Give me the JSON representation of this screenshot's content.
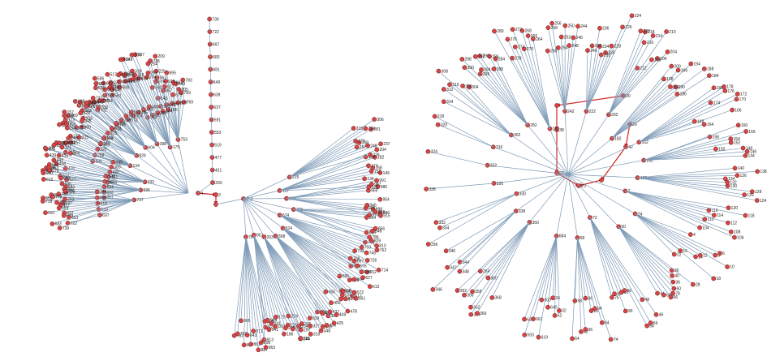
{
  "colors": {
    "edge": "#7f9bb7",
    "highlight_edge": "#cc2a2a",
    "node_fill": "#d94545",
    "node_stroke": "#5a1a1a",
    "label": "#222222"
  },
  "panels": [
    {
      "id": "left",
      "root_label": "",
      "highlight_labels": [
        "4",
        "2"
      ],
      "labels": [
        "293",
        "431",
        "477",
        "519",
        "553",
        "591",
        "637",
        "639",
        "649",
        "681",
        "683",
        "697",
        "722",
        "739",
        "753",
        "769",
        "783",
        "789",
        "805",
        "827",
        "843",
        "861",
        "871",
        "887",
        "895",
        "913",
        "927",
        "941",
        "957",
        "963",
        "975",
        "999",
        "141",
        "160",
        "175",
        "186",
        "209",
        "225",
        "238",
        "244",
        "254",
        "263",
        "274",
        "285",
        "297",
        "306",
        "319",
        "327",
        "339",
        "348",
        "356",
        "368",
        "377",
        "389",
        "398",
        "406",
        "416",
        "425",
        "437",
        "449",
        "455",
        "466",
        "478",
        "485",
        "495",
        "508",
        "517",
        "524",
        "533",
        "549",
        "561",
        "572",
        "586",
        "598",
        "604",
        "613",
        "627",
        "645",
        "652",
        "667",
        "674",
        "688",
        "695",
        "708",
        "714",
        "726",
        "733",
        "745",
        "759",
        "762",
        "774",
        "786",
        "799",
        "813",
        "829",
        "835",
        "848",
        "856",
        "864",
        "879",
        "886",
        "898",
        "903",
        "915",
        "923",
        "933",
        "946",
        "954",
        "969",
        "980",
        "987",
        "991",
        "112",
        "121",
        "134",
        "145",
        "157",
        "168",
        "173",
        "182",
        "196",
        "204",
        "215",
        "226",
        "237",
        "248",
        "257",
        "268",
        "279",
        "281",
        "294",
        "306",
        "315",
        "325",
        "333",
        "345",
        "352",
        "364",
        "371",
        "383",
        "395",
        "402",
        "413",
        "420",
        "439",
        "443",
        "458",
        "461",
        "470",
        "486",
        "492",
        "500",
        "514",
        "527",
        "536",
        "548",
        "555",
        "563",
        "578",
        "582",
        "590",
        "603",
        "612",
        "624",
        "636",
        "641",
        "650",
        "663",
        "676",
        "683",
        "695",
        "701",
        "718",
        "722",
        "737",
        "744",
        "755",
        "767",
        "778",
        "786"
      ]
    },
    {
      "id": "right",
      "root_label": "",
      "highlight_labels": [
        "20",
        "38",
        "62",
        "70",
        "62",
        "42",
        "26"
      ],
      "labels": [
        "684",
        "620",
        "593",
        "662",
        "600",
        "619",
        "640",
        "34",
        "52",
        "32",
        "58",
        "64",
        "98",
        "42",
        "96",
        "86",
        "82",
        "94",
        "84",
        "74",
        "72",
        "76",
        "88",
        "90",
        "92",
        "80",
        "54",
        "56",
        "48",
        "46",
        "50",
        "44",
        "68",
        "66",
        "78",
        "60",
        "36",
        "40",
        "30",
        "28",
        "24",
        "22",
        "18",
        "16",
        "14",
        "12",
        "10",
        "8",
        "6",
        "4",
        "2",
        "104",
        "106",
        "108",
        "110",
        "112",
        "114",
        "116",
        "118",
        "120",
        "122",
        "124",
        "126",
        "128",
        "130",
        "132",
        "134",
        "136",
        "138",
        "140",
        "142",
        "144",
        "146",
        "148",
        "150",
        "152",
        "154",
        "156",
        "158",
        "160",
        "162",
        "164",
        "166",
        "168",
        "170",
        "172",
        "174",
        "176",
        "178",
        "180",
        "182",
        "184",
        "186",
        "188",
        "190",
        "192",
        "194",
        "196",
        "198",
        "200",
        "202",
        "204",
        "206",
        "208",
        "210",
        "212",
        "214",
        "216",
        "218",
        "220",
        "222",
        "224",
        "226",
        "228",
        "230",
        "232",
        "234",
        "236",
        "238",
        "240",
        "242",
        "244",
        "246",
        "248",
        "250",
        "252",
        "254",
        "256",
        "258",
        "260",
        "262",
        "264",
        "266",
        "268",
        "270",
        "272",
        "274",
        "276",
        "278",
        "280",
        "282",
        "284",
        "286",
        "288",
        "290",
        "292",
        "294",
        "296",
        "298",
        "300",
        "302",
        "304",
        "306",
        "308",
        "310",
        "312",
        "314",
        "316",
        "318",
        "320",
        "322",
        "324",
        "326",
        "328",
        "330",
        "332",
        "334",
        "336",
        "338",
        "340",
        "342",
        "344",
        "346",
        "348",
        "350",
        "352",
        "354",
        "356",
        "358",
        "360",
        "362",
        "364",
        "366",
        "368",
        "370",
        "372",
        "374",
        "376",
        "378",
        "380",
        "382",
        "384",
        "386",
        "388",
        "390",
        "392",
        "394",
        "396",
        "398",
        "400"
      ]
    }
  ]
}
